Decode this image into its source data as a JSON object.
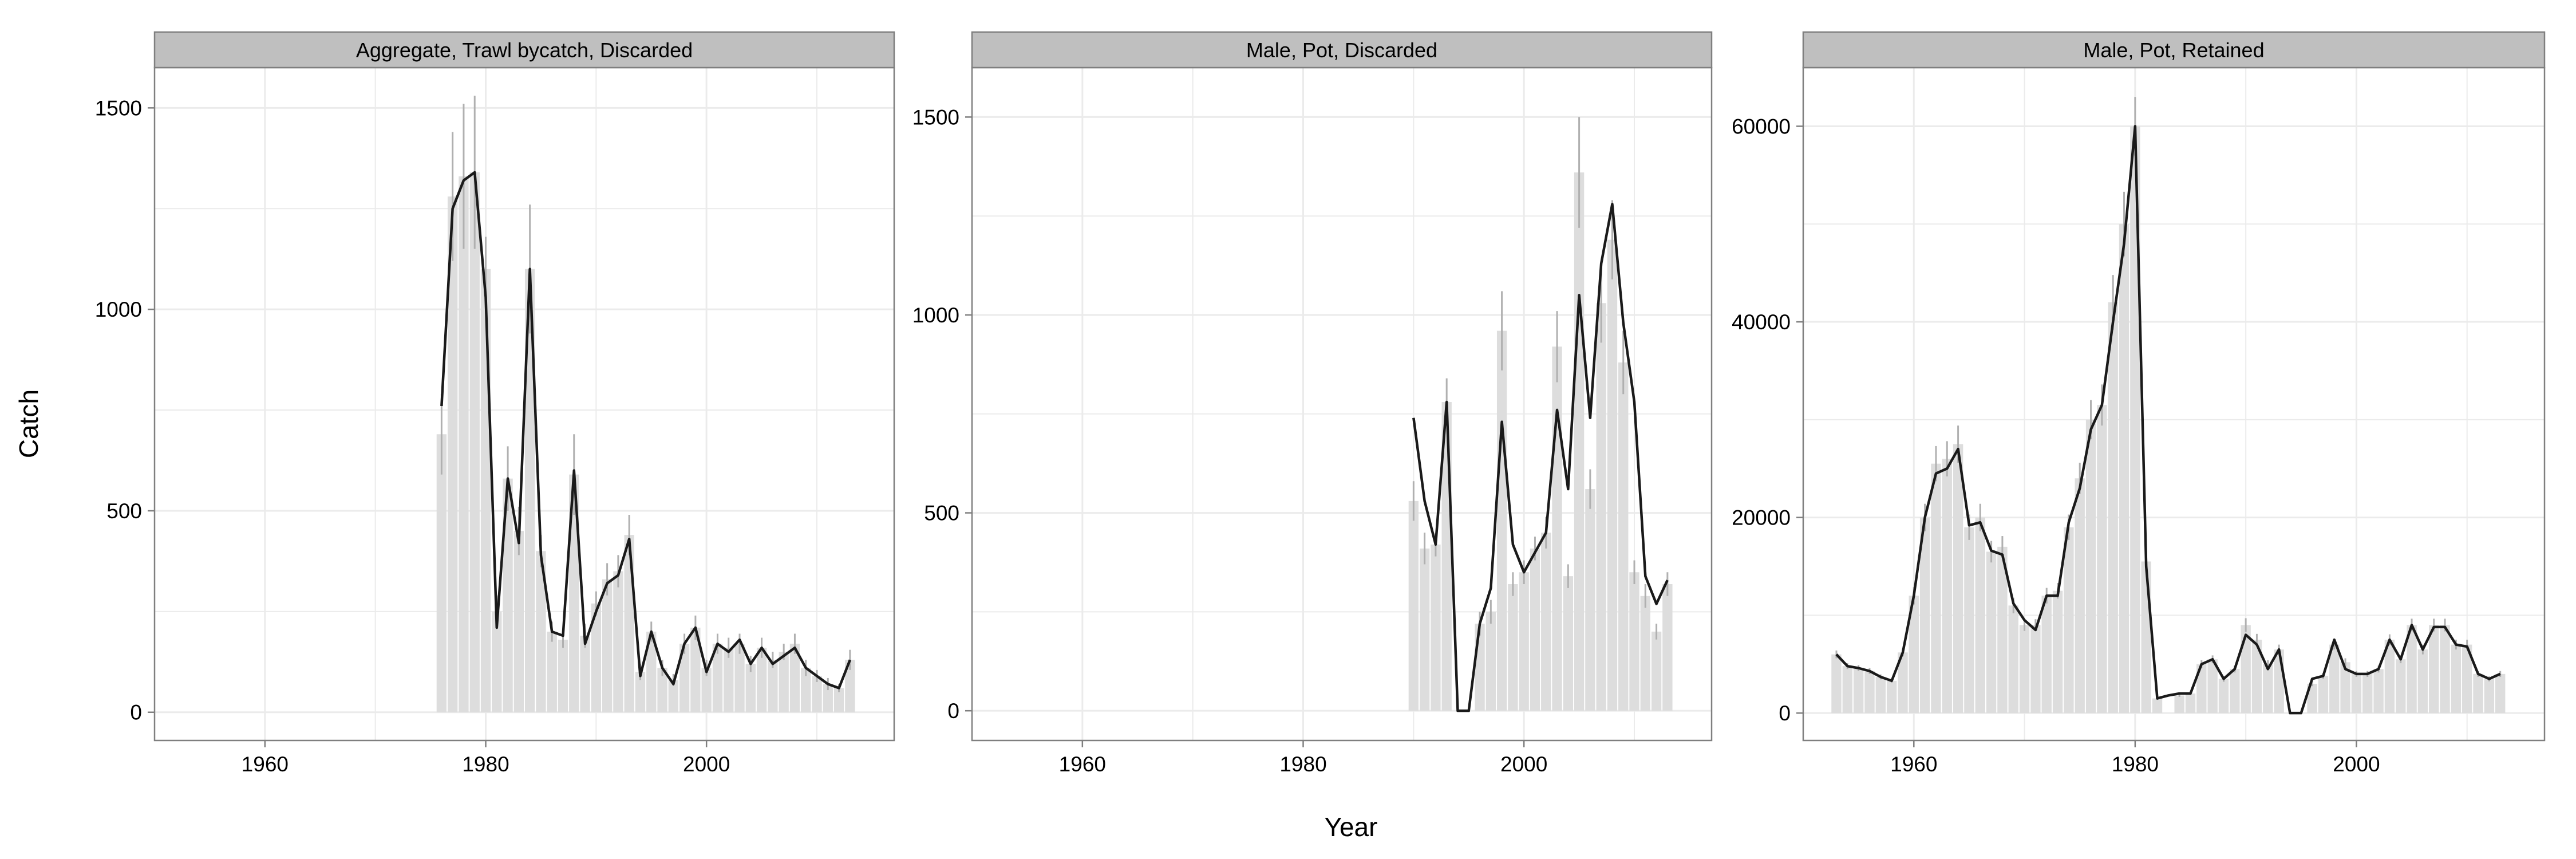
{
  "figure": {
    "xlabel": "Year",
    "ylabel": "Catch",
    "colors": {
      "panel_bg": "#ffffff",
      "strip_bg": "#bfbfbf",
      "grid": "#ebebeb",
      "border": "#7f7f7f",
      "bar": "#dddddd",
      "errorbar": "#b0b0b0",
      "line": "#1a1a1a",
      "text": "#000000"
    }
  },
  "chart_data": [
    {
      "type": "bar",
      "title": "Aggregate, Trawl bycatch, Discarded",
      "xlim": [
        1950,
        2017
      ],
      "ylim": [
        -70,
        1600
      ],
      "xticks": [
        1960,
        1980,
        2000
      ],
      "yticks": [
        0,
        500,
        1000,
        1500
      ],
      "observed": {
        "x": [
          1976,
          1977,
          1978,
          1979,
          1980,
          1981,
          1982,
          1983,
          1984,
          1985,
          1986,
          1987,
          1988,
          1989,
          1990,
          1991,
          1992,
          1993,
          1994,
          1995,
          1996,
          1997,
          1998,
          1999,
          2000,
          2001,
          2002,
          2003,
          2004,
          2005,
          2006,
          2007,
          2008,
          2009,
          2010,
          2011,
          2012,
          2013
        ],
        "y": [
          690,
          1280,
          1330,
          1340,
          1100,
          250,
          580,
          450,
          1100,
          400,
          200,
          180,
          590,
          190,
          270,
          330,
          350,
          440,
          100,
          200,
          110,
          80,
          170,
          210,
          110,
          170,
          160,
          170,
          120,
          160,
          130,
          150,
          170,
          110,
          90,
          70,
          60,
          130
        ],
        "err": [
          100,
          160,
          180,
          190,
          80,
          40,
          80,
          60,
          160,
          40,
          25,
          20,
          100,
          30,
          30,
          40,
          40,
          50,
          20,
          25,
          20,
          15,
          25,
          30,
          20,
          25,
          25,
          25,
          20,
          25,
          20,
          20,
          25,
          20,
          15,
          15,
          10,
          25
        ]
      },
      "predicted": {
        "x": [
          1976,
          1977,
          1978,
          1979,
          1980,
          1981,
          1982,
          1983,
          1984,
          1985,
          1986,
          1987,
          1988,
          1989,
          1990,
          1991,
          1992,
          1993,
          1994,
          1995,
          1996,
          1997,
          1998,
          1999,
          2000,
          2001,
          2002,
          2003,
          2004,
          2005,
          2006,
          2007,
          2008,
          2009,
          2010,
          2011,
          2012,
          2013
        ],
        "y": [
          760,
          1250,
          1320,
          1340,
          1030,
          210,
          580,
          420,
          1100,
          390,
          200,
          190,
          600,
          170,
          250,
          320,
          340,
          430,
          90,
          200,
          110,
          70,
          170,
          210,
          100,
          170,
          150,
          180,
          120,
          160,
          120,
          140,
          160,
          110,
          90,
          70,
          60,
          130
        ]
      }
    },
    {
      "type": "bar",
      "title": "Male, Pot, Discarded",
      "xlim": [
        1950,
        2017
      ],
      "ylim": [
        -75,
        1625
      ],
      "xticks": [
        1960,
        1980,
        2000
      ],
      "yticks": [
        0,
        500,
        1000,
        1500
      ],
      "observed": {
        "x": [
          1990,
          1991,
          1992,
          1993,
          1994,
          1995,
          1996,
          1997,
          1998,
          1999,
          2000,
          2001,
          2002,
          2003,
          2004,
          2005,
          2006,
          2007,
          2008,
          2009,
          2010,
          2011,
          2012,
          2013
        ],
        "y": [
          530,
          410,
          420,
          780,
          0,
          0,
          220,
          250,
          960,
          320,
          350,
          410,
          450,
          920,
          340,
          1360,
          560,
          1030,
          1190,
          880,
          350,
          290,
          200,
          320
        ],
        "err": [
          50,
          40,
          30,
          60,
          0,
          0,
          30,
          30,
          100,
          30,
          30,
          30,
          40,
          90,
          30,
          140,
          50,
          100,
          100,
          80,
          30,
          30,
          20,
          30
        ]
      },
      "predicted": {
        "x": [
          1990,
          1991,
          1992,
          1993,
          1994,
          1995,
          1996,
          1997,
          1998,
          1999,
          2000,
          2001,
          2002,
          2003,
          2004,
          2005,
          2006,
          2007,
          2008,
          2009,
          2010,
          2011,
          2012,
          2013
        ],
        "y": [
          740,
          530,
          420,
          780,
          0,
          0,
          220,
          310,
          730,
          420,
          350,
          400,
          450,
          760,
          560,
          1050,
          740,
          1130,
          1280,
          980,
          780,
          340,
          270,
          330
        ]
      }
    },
    {
      "type": "bar",
      "title": "Male, Pot, Retained",
      "xlim": [
        1950,
        2017
      ],
      "ylim": [
        -2800,
        66000
      ],
      "xticks": [
        1960,
        1980,
        2000
      ],
      "yticks": [
        0,
        20000,
        40000,
        60000
      ],
      "observed": {
        "x": [
          1953,
          1954,
          1955,
          1956,
          1957,
          1958,
          1959,
          1960,
          1961,
          1962,
          1963,
          1964,
          1965,
          1966,
          1967,
          1968,
          1969,
          1970,
          1971,
          1972,
          1973,
          1974,
          1975,
          1976,
          1977,
          1978,
          1979,
          1980,
          1981,
          1982,
          1983,
          1984,
          1985,
          1986,
          1987,
          1988,
          1989,
          1990,
          1991,
          1992,
          1993,
          1994,
          1995,
          1996,
          1997,
          1998,
          1999,
          2000,
          2001,
          2002,
          2003,
          2004,
          2005,
          2006,
          2007,
          2008,
          2009,
          2010,
          2011,
          2012,
          2013
        ],
        "y": [
          6000,
          4800,
          4600,
          4300,
          3700,
          3300,
          6200,
          12000,
          20000,
          25500,
          26000,
          27500,
          19000,
          20000,
          16500,
          17000,
          11000,
          9000,
          9000,
          12000,
          12500,
          19000,
          24000,
          30000,
          31500,
          42000,
          50000,
          60000,
          15500,
          1500,
          0,
          1800,
          2000,
          5000,
          5500,
          3500,
          4500,
          9000,
          7500,
          5000,
          6500,
          0,
          0,
          3000,
          3800,
          7000,
          5200,
          4000,
          4000,
          4500,
          7500,
          5500,
          9000,
          6500,
          9000,
          9000,
          7000,
          7000,
          4000,
          3500,
          4000
        ],
        "err": [
          400,
          300,
          300,
          300,
          250,
          200,
          400,
          900,
          1400,
          1800,
          1800,
          1900,
          1300,
          1400,
          1100,
          1100,
          800,
          600,
          600,
          800,
          800,
          1300,
          1600,
          2000,
          2100,
          2800,
          3300,
          3000,
          1000,
          150,
          0,
          150,
          150,
          400,
          400,
          300,
          350,
          700,
          600,
          400,
          500,
          0,
          0,
          250,
          300,
          500,
          400,
          300,
          300,
          350,
          550,
          400,
          650,
          500,
          650,
          650,
          500,
          500,
          300,
          250,
          300
        ]
      },
      "predicted": {
        "x": [
          1953,
          1954,
          1955,
          1956,
          1957,
          1958,
          1959,
          1960,
          1961,
          1962,
          1963,
          1964,
          1965,
          1966,
          1967,
          1968,
          1969,
          1970,
          1971,
          1972,
          1973,
          1974,
          1975,
          1976,
          1977,
          1978,
          1979,
          1980,
          1981,
          1982,
          1983,
          1984,
          1985,
          1986,
          1987,
          1988,
          1989,
          1990,
          1991,
          1992,
          1993,
          1994,
          1995,
          1996,
          1997,
          1998,
          1999,
          2000,
          2001,
          2002,
          2003,
          2004,
          2005,
          2006,
          2007,
          2008,
          2009,
          2010,
          2011,
          2012,
          2013
        ],
        "y": [
          6000,
          4800,
          4600,
          4300,
          3700,
          3300,
          6200,
          12000,
          20000,
          24500,
          25000,
          27000,
          19200,
          19500,
          16600,
          16200,
          11200,
          9500,
          8500,
          12000,
          12000,
          19500,
          23000,
          29000,
          31500,
          40000,
          48000,
          60000,
          15000,
          1500,
          1800,
          2000,
          2000,
          5000,
          5500,
          3500,
          4500,
          8000,
          7000,
          4500,
          6500,
          0,
          0,
          3500,
          3800,
          7500,
          4500,
          4000,
          4000,
          4500,
          7500,
          5500,
          9000,
          6500,
          8800,
          8800,
          7000,
          6800,
          4000,
          3500,
          4000
        ]
      }
    }
  ]
}
